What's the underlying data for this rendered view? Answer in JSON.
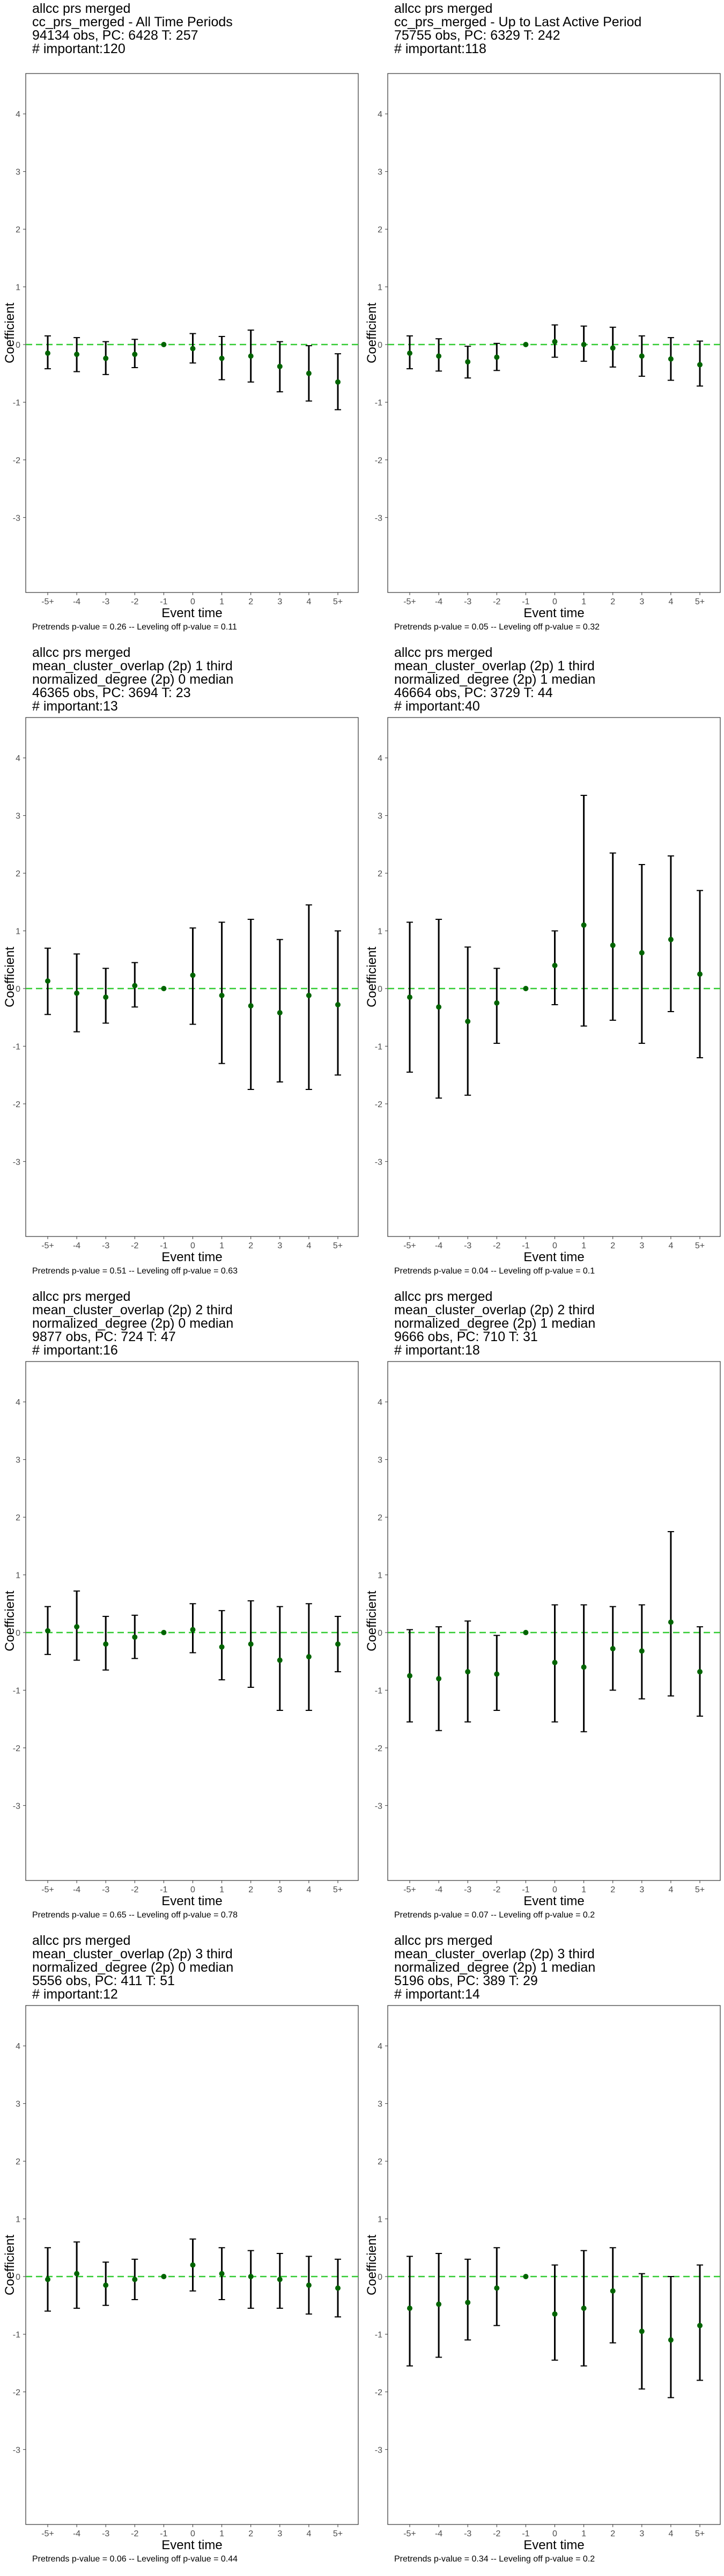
{
  "chart_data": [
    {
      "type": "scatter",
      "title_lines": [
        "allcc prs merged",
        "cc_prs_merged - All Time Periods",
        "94134 obs, PC: 6428 T: 257",
        "# important:120"
      ],
      "footer": "Pretrends p-value = 0.26 -- Leveling off p-value = 0.11",
      "xlabel": "Event time",
      "ylabel": "Coefficient",
      "x_categories": [
        "-5+",
        "-4",
        "-3",
        "-2",
        "-1",
        "0",
        "1",
        "2",
        "3",
        "4",
        "5+"
      ],
      "ylim": [
        -4.3,
        4.7
      ],
      "yticks": [
        -3,
        -2,
        -1,
        0,
        1,
        2,
        3,
        4
      ],
      "reference_line": 0,
      "grid": false,
      "series": [
        {
          "estimate": [
            -0.15,
            -0.17,
            -0.24,
            -0.17,
            0,
            -0.07,
            -0.24,
            -0.2,
            -0.38,
            -0.5,
            -0.65
          ],
          "ci_low": [
            -0.42,
            -0.47,
            -0.52,
            -0.4,
            0,
            -0.32,
            -0.61,
            -0.65,
            -0.82,
            -0.98,
            -1.13
          ],
          "ci_high": [
            0.15,
            0.12,
            0.05,
            0.09,
            0,
            0.19,
            0.14,
            0.25,
            0.05,
            -0.02,
            -0.16
          ],
          "colors": {
            "point": "#006400",
            "interval": "#000000",
            "reference": "#33cc33"
          }
        }
      ]
    },
    {
      "type": "scatter",
      "title_lines": [
        "allcc prs merged",
        "cc_prs_merged - Up to Last Active Period",
        "75755 obs, PC: 6329 T: 242",
        "# important:118"
      ],
      "footer": "Pretrends p-value = 0.05 -- Leveling off p-value = 0.32",
      "xlabel": "Event time",
      "ylabel": "Coefficient",
      "x_categories": [
        "-5+",
        "-4",
        "-3",
        "-2",
        "-1",
        "0",
        "1",
        "2",
        "3",
        "4",
        "5+"
      ],
      "ylim": [
        -4.3,
        4.7
      ],
      "yticks": [
        -3,
        -2,
        -1,
        0,
        1,
        2,
        3,
        4
      ],
      "reference_line": 0,
      "grid": false,
      "series": [
        {
          "estimate": [
            -0.15,
            -0.2,
            -0.3,
            -0.22,
            0,
            0.05,
            0.0,
            -0.06,
            -0.2,
            -0.25,
            -0.35
          ],
          "ci_low": [
            -0.42,
            -0.46,
            -0.58,
            -0.45,
            0,
            -0.22,
            -0.29,
            -0.39,
            -0.55,
            -0.62,
            -0.72
          ],
          "ci_high": [
            0.15,
            0.1,
            -0.03,
            0.02,
            0,
            0.34,
            0.32,
            0.3,
            0.15,
            0.12,
            0.06
          ],
          "colors": {
            "point": "#006400",
            "interval": "#000000",
            "reference": "#33cc33"
          }
        }
      ]
    },
    {
      "type": "scatter",
      "title_lines": [
        "allcc prs merged",
        "mean_cluster_overlap (2p) 1 third",
        "normalized_degree (2p) 0 median",
        "46365 obs, PC: 3694 T: 23",
        "# important:13"
      ],
      "footer": "Pretrends p-value = 0.51 -- Leveling off p-value = 0.63",
      "xlabel": "Event time",
      "ylabel": "Coefficient",
      "x_categories": [
        "-5+",
        "-4",
        "-3",
        "-2",
        "-1",
        "0",
        "1",
        "2",
        "3",
        "4",
        "5+"
      ],
      "ylim": [
        -4.3,
        4.7
      ],
      "yticks": [
        -3,
        -2,
        -1,
        0,
        1,
        2,
        3,
        4
      ],
      "reference_line": 0,
      "grid": false,
      "series": [
        {
          "estimate": [
            0.13,
            -0.08,
            -0.15,
            0.05,
            0,
            0.23,
            -0.12,
            -0.3,
            -0.42,
            -0.12,
            -0.28
          ],
          "ci_low": [
            -0.45,
            -0.75,
            -0.6,
            -0.32,
            0,
            -0.62,
            -1.3,
            -1.75,
            -1.62,
            -1.75,
            -1.5
          ],
          "ci_high": [
            0.7,
            0.6,
            0.35,
            0.45,
            0,
            1.05,
            1.15,
            1.2,
            0.85,
            1.45,
            1.0
          ],
          "colors": {
            "point": "#006400",
            "interval": "#000000",
            "reference": "#33cc33"
          }
        }
      ]
    },
    {
      "type": "scatter",
      "title_lines": [
        "allcc prs merged",
        "mean_cluster_overlap (2p) 1 third",
        "normalized_degree (2p) 1 median",
        "46664 obs, PC: 3729 T: 44",
        "# important:40"
      ],
      "footer": "Pretrends p-value = 0.04 -- Leveling off p-value = 0.1",
      "xlabel": "Event time",
      "ylabel": "Coefficient",
      "x_categories": [
        "-5+",
        "-4",
        "-3",
        "-2",
        "-1",
        "0",
        "1",
        "2",
        "3",
        "4",
        "5+"
      ],
      "ylim": [
        -4.3,
        4.7
      ],
      "yticks": [
        -3,
        -2,
        -1,
        0,
        1,
        2,
        3,
        4
      ],
      "reference_line": 0,
      "grid": false,
      "series": [
        {
          "estimate": [
            -0.15,
            -0.32,
            -0.57,
            -0.25,
            0,
            0.4,
            1.1,
            0.75,
            0.62,
            0.85,
            0.25
          ],
          "ci_low": [
            -1.45,
            -1.9,
            -1.85,
            -0.95,
            0,
            -0.28,
            -0.65,
            -0.55,
            -0.95,
            -0.4,
            -1.2
          ],
          "ci_high": [
            1.15,
            1.2,
            0.72,
            0.35,
            0,
            1.0,
            3.35,
            2.35,
            2.15,
            2.3,
            1.7
          ],
          "colors": {
            "point": "#006400",
            "interval": "#000000",
            "reference": "#33cc33"
          }
        }
      ]
    },
    {
      "type": "scatter",
      "title_lines": [
        "allcc prs merged",
        "mean_cluster_overlap (2p) 2 third",
        "normalized_degree (2p) 0 median",
        "9877 obs, PC: 724 T: 47",
        "# important:16"
      ],
      "footer": "Pretrends p-value = 0.65 -- Leveling off p-value = 0.78",
      "xlabel": "Event time",
      "ylabel": "Coefficient",
      "x_categories": [
        "-5+",
        "-4",
        "-3",
        "-2",
        "-1",
        "0",
        "1",
        "2",
        "3",
        "4",
        "5+"
      ],
      "ylim": [
        -4.3,
        4.7
      ],
      "yticks": [
        -3,
        -2,
        -1,
        0,
        1,
        2,
        3,
        4
      ],
      "reference_line": 0,
      "grid": false,
      "series": [
        {
          "estimate": [
            0.03,
            0.1,
            -0.2,
            -0.08,
            0,
            0.05,
            -0.25,
            -0.2,
            -0.48,
            -0.42,
            -0.2
          ],
          "ci_low": [
            -0.38,
            -0.48,
            -0.65,
            -0.45,
            0,
            -0.35,
            -0.82,
            -0.95,
            -1.35,
            -1.35,
            -0.68
          ],
          "ci_high": [
            0.45,
            0.72,
            0.28,
            0.3,
            0,
            0.5,
            0.38,
            0.55,
            0.45,
            0.5,
            0.28
          ],
          "colors": {
            "point": "#006400",
            "interval": "#000000",
            "reference": "#33cc33"
          }
        }
      ]
    },
    {
      "type": "scatter",
      "title_lines": [
        "allcc prs merged",
        "mean_cluster_overlap (2p) 2 third",
        "normalized_degree (2p) 1 median",
        "9666 obs, PC: 710 T: 31",
        "# important:18"
      ],
      "footer": "Pretrends p-value = 0.07 -- Leveling off p-value = 0.2",
      "xlabel": "Event time",
      "ylabel": "Coefficient",
      "x_categories": [
        "-5+",
        "-4",
        "-3",
        "-2",
        "-1",
        "0",
        "1",
        "2",
        "3",
        "4",
        "5+"
      ],
      "ylim": [
        -4.3,
        4.7
      ],
      "yticks": [
        -3,
        -2,
        -1,
        0,
        1,
        2,
        3,
        4
      ],
      "reference_line": 0,
      "grid": false,
      "series": [
        {
          "estimate": [
            -0.75,
            -0.8,
            -0.68,
            -0.72,
            0,
            -0.52,
            -0.6,
            -0.28,
            -0.32,
            0.18,
            -0.68
          ],
          "ci_low": [
            -1.55,
            -1.7,
            -1.55,
            -1.35,
            0,
            -1.55,
            -1.72,
            -1.0,
            -1.15,
            -1.1,
            -1.45
          ],
          "ci_high": [
            0.05,
            0.1,
            0.2,
            -0.05,
            0,
            0.48,
            0.48,
            0.45,
            0.48,
            1.75,
            0.1
          ],
          "colors": {
            "point": "#006400",
            "interval": "#000000",
            "reference": "#33cc33"
          }
        }
      ]
    },
    {
      "type": "scatter",
      "title_lines": [
        "allcc prs merged",
        "mean_cluster_overlap (2p) 3 third",
        "normalized_degree (2p) 0 median",
        "5556 obs, PC: 411 T: 51",
        "# important:12"
      ],
      "footer": "Pretrends p-value = 0.06 -- Leveling off p-value = 0.44",
      "xlabel": "Event time",
      "ylabel": "Coefficient",
      "x_categories": [
        "-5+",
        "-4",
        "-3",
        "-2",
        "-1",
        "0",
        "1",
        "2",
        "3",
        "4",
        "5+"
      ],
      "ylim": [
        -4.3,
        4.7
      ],
      "yticks": [
        -3,
        -2,
        -1,
        0,
        1,
        2,
        3,
        4
      ],
      "reference_line": 0,
      "grid": false,
      "series": [
        {
          "estimate": [
            -0.05,
            0.05,
            -0.15,
            -0.05,
            0,
            0.2,
            0.05,
            0.0,
            -0.05,
            -0.15,
            -0.2
          ],
          "ci_low": [
            -0.6,
            -0.55,
            -0.5,
            -0.4,
            0,
            -0.25,
            -0.4,
            -0.55,
            -0.55,
            -0.65,
            -0.7
          ],
          "ci_high": [
            0.5,
            0.6,
            0.25,
            0.3,
            0,
            0.65,
            0.5,
            0.45,
            0.4,
            0.35,
            0.3
          ],
          "colors": {
            "point": "#006400",
            "interval": "#000000",
            "reference": "#33cc33"
          }
        }
      ]
    },
    {
      "type": "scatter",
      "title_lines": [
        "allcc prs merged",
        "mean_cluster_overlap (2p) 3 third",
        "normalized_degree (2p) 1 median",
        "5196 obs, PC: 389 T: 29",
        "# important:14"
      ],
      "footer": "Pretrends p-value = 0.34 -- Leveling off p-value = 0.2",
      "xlabel": "Event time",
      "ylabel": "Coefficient",
      "x_categories": [
        "-5+",
        "-4",
        "-3",
        "-2",
        "-1",
        "0",
        "1",
        "2",
        "3",
        "4",
        "5+"
      ],
      "ylim": [
        -4.3,
        4.7
      ],
      "yticks": [
        -3,
        -2,
        -1,
        0,
        1,
        2,
        3,
        4
      ],
      "reference_line": 0,
      "grid": false,
      "series": [
        {
          "estimate": [
            -0.55,
            -0.48,
            -0.45,
            -0.2,
            0,
            -0.65,
            -0.55,
            -0.25,
            -0.95,
            -1.1,
            -0.85
          ],
          "ci_low": [
            -1.55,
            -1.4,
            -1.1,
            -0.85,
            0,
            -1.45,
            -1.55,
            -1.15,
            -1.95,
            -2.1,
            -1.8
          ],
          "ci_high": [
            0.35,
            0.4,
            0.3,
            0.5,
            0,
            0.2,
            0.45,
            0.5,
            0.05,
            0.0,
            0.2
          ],
          "colors": {
            "point": "#006400",
            "interval": "#000000",
            "reference": "#33cc33"
          }
        }
      ]
    }
  ]
}
